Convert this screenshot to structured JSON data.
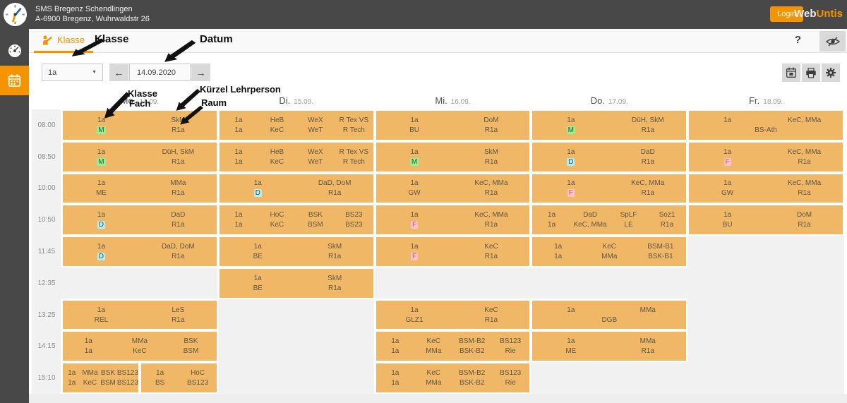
{
  "topbar": {
    "school_name": "SMS Bregenz Schendlingen",
    "school_address": "A-6900 Bregenz, Wuhrwaldstr 26",
    "login_label": "Login",
    "brand_web": "Web",
    "brand_untis": "Untis"
  },
  "sidebar": {
    "items": [
      {
        "name": "dashboard",
        "icon": "speedometer-icon",
        "active": false
      },
      {
        "name": "timetable",
        "icon": "calendar-icon",
        "active": true
      }
    ]
  },
  "tabbar": {
    "tab_label": "Klasse",
    "help_label": "?"
  },
  "controls": {
    "class_select_value": "1a",
    "date_value": "14.09.2020",
    "prev_label": "←",
    "next_label": "→"
  },
  "annotations": {
    "klasse_label": "Klasse",
    "datum_label": "Datum",
    "klasse2_label": "Klasse",
    "fach_label": "Fach",
    "lehrperson_label": "Kürzel Lehrperson",
    "raum_label": "Raum"
  },
  "colors": {
    "accent_orange": "#f59300",
    "lesson_orange": "#f0b866",
    "highlight_green": "#90f290",
    "highlight_cyan": "#b2eff3",
    "highlight_pink": "#f9c4ca",
    "topbar_gray": "#484848"
  },
  "timetable": {
    "times": [
      "08:00",
      "08:50",
      "10:00",
      "10:50",
      "11:45",
      "12:35",
      "13:25",
      "14:15",
      "15:10"
    ],
    "days": [
      {
        "label": "Mo.",
        "date": "14.09."
      },
      {
        "label": "Di.",
        "date": "15.09."
      },
      {
        "label": "Mi.",
        "date": "16.09."
      },
      {
        "label": "Do.",
        "date": "17.09."
      },
      {
        "label": "Fr.",
        "date": "18.09."
      }
    ],
    "lessons": [
      {
        "day": 0,
        "row": 0,
        "grid": [
          [
            "1a",
            "SkM"
          ],
          [
            {
              "t": "M",
              "hl": "green"
            },
            "R1a"
          ]
        ]
      },
      {
        "day": 0,
        "row": 1,
        "grid": [
          [
            "1a",
            "DüH, SkM"
          ],
          [
            {
              "t": "M",
              "hl": "green"
            },
            "R1a"
          ]
        ]
      },
      {
        "day": 0,
        "row": 2,
        "grid": [
          [
            "1a",
            "MMa"
          ],
          [
            "ME",
            "R1a"
          ]
        ]
      },
      {
        "day": 0,
        "row": 3,
        "grid": [
          [
            "1a",
            "DaD"
          ],
          [
            {
              "t": "D",
              "hl": "cyan"
            },
            "R1a"
          ]
        ]
      },
      {
        "day": 0,
        "row": 4,
        "grid": [
          [
            "1a",
            "DaD, DoM"
          ],
          [
            {
              "t": "D",
              "hl": "cyan"
            },
            "R1a"
          ]
        ]
      },
      {
        "day": 0,
        "row": 6,
        "grid": [
          [
            "1a",
            "LeS"
          ],
          [
            "REL",
            "R1a"
          ]
        ]
      },
      {
        "day": 0,
        "row": 7,
        "grid": [
          [
            "1a",
            "MMa",
            "BSK"
          ],
          [
            "1a",
            "KeC",
            "BSM"
          ]
        ]
      },
      {
        "day": 0,
        "row": 8,
        "x": 0,
        "w": 0.5,
        "grid": [
          [
            "1a",
            "MMa",
            "BSK",
            "BS123"
          ],
          [
            "1a",
            "KeC",
            "BSM",
            "BS123"
          ]
        ]
      },
      {
        "day": 0,
        "row": 8,
        "x": 0.5,
        "w": 0.5,
        "grid": [
          [
            "1a",
            "HoC"
          ],
          [
            "BS",
            "BS123"
          ]
        ]
      },
      {
        "day": 1,
        "row": 0,
        "grid": [
          [
            "1a",
            "HeB",
            "WeX",
            "R Tex VS"
          ],
          [
            "1a",
            "KeC",
            "WeT",
            "R Tech"
          ]
        ]
      },
      {
        "day": 1,
        "row": 1,
        "grid": [
          [
            "1a",
            "HeB",
            "WeX",
            "R Tex VS"
          ],
          [
            "1a",
            "KeC",
            "WeT",
            "R Tech"
          ]
        ]
      },
      {
        "day": 1,
        "row": 2,
        "grid": [
          [
            "1a",
            "DaD, DoM"
          ],
          [
            {
              "t": "D",
              "hl": "cyan"
            },
            "R1a"
          ]
        ]
      },
      {
        "day": 1,
        "row": 3,
        "grid": [
          [
            "1a",
            "HoC",
            "BSK",
            "BS23"
          ],
          [
            "1a",
            "KeC",
            "BSM",
            "BS23"
          ]
        ]
      },
      {
        "day": 1,
        "row": 4,
        "grid": [
          [
            "1a",
            "SkM"
          ],
          [
            "BE",
            "R1a"
          ]
        ]
      },
      {
        "day": 1,
        "row": 5,
        "grid": [
          [
            "1a",
            "SkM"
          ],
          [
            "BE",
            "R1a"
          ]
        ]
      },
      {
        "day": 2,
        "row": 0,
        "grid": [
          [
            "1a",
            "DoM"
          ],
          [
            "BU",
            "R1a"
          ]
        ]
      },
      {
        "day": 2,
        "row": 1,
        "grid": [
          [
            "1a",
            "SkM"
          ],
          [
            {
              "t": "M",
              "hl": "green"
            },
            "R1a"
          ]
        ]
      },
      {
        "day": 2,
        "row": 2,
        "grid": [
          [
            "1a",
            "KeC, MMa"
          ],
          [
            "GW",
            "R1a"
          ]
        ]
      },
      {
        "day": 2,
        "row": 3,
        "grid": [
          [
            "1a",
            "KeC, MMa"
          ],
          [
            {
              "t": "F",
              "hl": "pink"
            },
            "R1a"
          ]
        ]
      },
      {
        "day": 2,
        "row": 4,
        "grid": [
          [
            "1a",
            "KeC"
          ],
          [
            {
              "t": "F",
              "hl": "pink"
            },
            "R1a"
          ]
        ]
      },
      {
        "day": 2,
        "row": 6,
        "grid": [
          [
            "1a",
            "KeC"
          ],
          [
            "GLZ1",
            "R1a"
          ]
        ]
      },
      {
        "day": 2,
        "row": 7,
        "grid": [
          [
            "1a",
            "KeC",
            "BSM-B2",
            "BS123"
          ],
          [
            "1a",
            "MMa",
            "BSK-B2",
            "Rie"
          ]
        ]
      },
      {
        "day": 2,
        "row": 8,
        "grid": [
          [
            "1a",
            "KeC",
            "BSM-B2",
            "BS123"
          ],
          [
            "1a",
            "MMa",
            "BSK-B2",
            "Rie"
          ]
        ]
      },
      {
        "day": 3,
        "row": 0,
        "grid": [
          [
            "1a",
            "DüH, SkM"
          ],
          [
            {
              "t": "M",
              "hl": "green"
            },
            "R1a"
          ]
        ]
      },
      {
        "day": 3,
        "row": 1,
        "grid": [
          [
            "1a",
            "DaD"
          ],
          [
            {
              "t": "D",
              "hl": "cyan"
            },
            "R1a"
          ]
        ]
      },
      {
        "day": 3,
        "row": 2,
        "grid": [
          [
            "1a",
            "KeC, MMa"
          ],
          [
            {
              "t": "F",
              "hl": "pink"
            },
            "R1a"
          ]
        ]
      },
      {
        "day": 3,
        "row": 3,
        "grid": [
          [
            "1a",
            "DaD",
            "SpLF",
            "Soz1"
          ],
          [
            "1a",
            "KeC, MMa",
            "LE",
            "R1a"
          ]
        ]
      },
      {
        "day": 3,
        "row": 4,
        "grid": [
          [
            "1a",
            "KeC",
            "BSM-B1"
          ],
          [
            "1a",
            "MMa",
            "BSK-B1"
          ]
        ]
      },
      {
        "day": 3,
        "row": 6,
        "grid": [
          [
            "1a",
            "MMa"
          ],
          [
            "DGB"
          ]
        ]
      },
      {
        "day": 3,
        "row": 7,
        "grid": [
          [
            "1a",
            "MMa"
          ],
          [
            "ME",
            "R1a"
          ]
        ]
      },
      {
        "day": 4,
        "row": 0,
        "grid": [
          [
            "1a",
            "KeC, MMa"
          ],
          [
            "BS-Ath"
          ]
        ]
      },
      {
        "day": 4,
        "row": 1,
        "grid": [
          [
            "1a",
            "KeC, MMa"
          ],
          [
            {
              "t": "F",
              "hl": "pink"
            },
            "R1a"
          ]
        ]
      },
      {
        "day": 4,
        "row": 2,
        "grid": [
          [
            "1a",
            "KeC, MMa"
          ],
          [
            "GW",
            "R1a"
          ]
        ]
      },
      {
        "day": 4,
        "row": 3,
        "grid": [
          [
            "1a",
            "DoM"
          ],
          [
            "BU",
            "R1a"
          ]
        ]
      }
    ]
  }
}
